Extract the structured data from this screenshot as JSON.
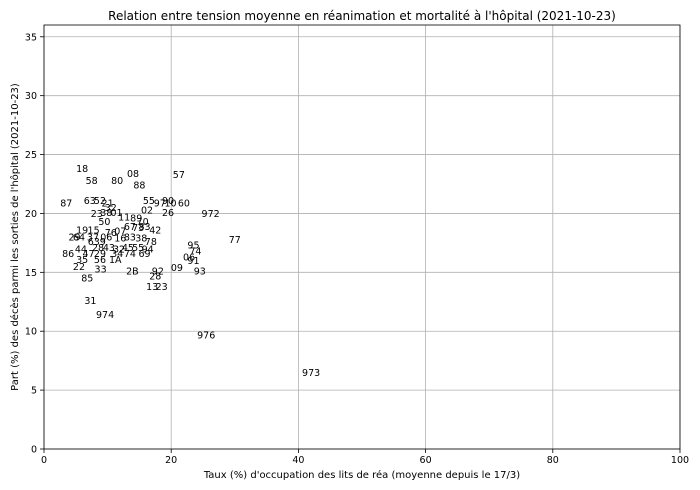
{
  "chart_data": {
    "type": "scatter",
    "title": "Relation entre tension moyenne en réanimation et mortalité à l'hôpital (2021-10-23)",
    "xlabel": "Taux (%) d'occupation des lits de réa (moyenne depuis le 17/3)",
    "ylabel": "Part (%) des décès parmi les sorties de l'hôpital (2021-10-23)",
    "xlim": [
      0,
      100
    ],
    "ylim": [
      0,
      36
    ],
    "xticks": [
      0,
      20,
      40,
      60,
      80,
      100
    ],
    "yticks": [
      0,
      5,
      10,
      15,
      20,
      25,
      30,
      35
    ],
    "grid": true,
    "marker": "text-label",
    "points": [
      {
        "label": "18",
        "x": 6.0,
        "y": 23.8
      },
      {
        "label": "58",
        "x": 7.5,
        "y": 22.8
      },
      {
        "label": "80",
        "x": 11.5,
        "y": 22.8
      },
      {
        "label": "08",
        "x": 14.0,
        "y": 23.4
      },
      {
        "label": "57",
        "x": 21.2,
        "y": 23.3
      },
      {
        "label": "88",
        "x": 15.0,
        "y": 22.4
      },
      {
        "label": "87",
        "x": 3.5,
        "y": 20.9
      },
      {
        "label": "63",
        "x": 7.2,
        "y": 21.1
      },
      {
        "label": "52",
        "x": 8.8,
        "y": 21.1
      },
      {
        "label": "21",
        "x": 10.0,
        "y": 20.9
      },
      {
        "label": "55",
        "x": 16.5,
        "y": 21.1
      },
      {
        "label": "90",
        "x": 19.5,
        "y": 21.1
      },
      {
        "label": "97",
        "x": 18.2,
        "y": 20.9
      },
      {
        "label": "10",
        "x": 19.9,
        "y": 20.9
      },
      {
        "label": "60",
        "x": 22.0,
        "y": 20.9
      },
      {
        "label": "32",
        "x": 10.5,
        "y": 20.5
      },
      {
        "label": "02",
        "x": 16.2,
        "y": 20.3
      },
      {
        "label": "26",
        "x": 19.5,
        "y": 20.1
      },
      {
        "label": "972",
        "x": 26.2,
        "y": 20.0
      },
      {
        "label": "23",
        "x": 8.3,
        "y": 20.0
      },
      {
        "label": "38",
        "x": 9.8,
        "y": 20.1
      },
      {
        "label": "01",
        "x": 11.4,
        "y": 20.1
      },
      {
        "label": "11",
        "x": 12.6,
        "y": 19.7
      },
      {
        "label": "89",
        "x": 14.5,
        "y": 19.6
      },
      {
        "label": "50",
        "x": 9.5,
        "y": 19.3
      },
      {
        "label": "70",
        "x": 15.5,
        "y": 19.3
      },
      {
        "label": "67",
        "x": 13.5,
        "y": 18.9
      },
      {
        "label": "73",
        "x": 14.8,
        "y": 18.8
      },
      {
        "label": "83",
        "x": 15.8,
        "y": 18.9
      },
      {
        "label": "42",
        "x": 17.5,
        "y": 18.6
      },
      {
        "label": "19",
        "x": 6.0,
        "y": 18.6
      },
      {
        "label": "15",
        "x": 7.8,
        "y": 18.6
      },
      {
        "label": "76",
        "x": 10.5,
        "y": 18.4
      },
      {
        "label": "07",
        "x": 12.0,
        "y": 18.5
      },
      {
        "label": "77",
        "x": 30.0,
        "y": 17.8
      },
      {
        "label": "29",
        "x": 4.8,
        "y": 18.0
      },
      {
        "label": "64",
        "x": 5.5,
        "y": 18.0
      },
      {
        "label": "37",
        "x": 7.7,
        "y": 18.0
      },
      {
        "label": "06",
        "x": 9.8,
        "y": 18.0
      },
      {
        "label": "16",
        "x": 12.0,
        "y": 17.9
      },
      {
        "label": "83",
        "x": 13.5,
        "y": 18.0
      },
      {
        "label": "38",
        "x": 15.3,
        "y": 17.9
      },
      {
        "label": "639",
        "x": 8.3,
        "y": 17.6
      },
      {
        "label": "78",
        "x": 16.8,
        "y": 17.6
      },
      {
        "label": "95",
        "x": 23.5,
        "y": 17.3
      },
      {
        "label": "44",
        "x": 5.8,
        "y": 17.0
      },
      {
        "label": "28",
        "x": 8.5,
        "y": 17.1
      },
      {
        "label": "43",
        "x": 10.2,
        "y": 17.1
      },
      {
        "label": "32",
        "x": 11.8,
        "y": 17.0
      },
      {
        "label": "45",
        "x": 13.2,
        "y": 17.1
      },
      {
        "label": "55",
        "x": 14.8,
        "y": 17.1
      },
      {
        "label": "94",
        "x": 16.3,
        "y": 17.0
      },
      {
        "label": "74",
        "x": 23.8,
        "y": 16.8
      },
      {
        "label": "86",
        "x": 3.8,
        "y": 16.6
      },
      {
        "label": "47",
        "x": 7.0,
        "y": 16.6
      },
      {
        "label": "29",
        "x": 8.8,
        "y": 16.6
      },
      {
        "label": "34",
        "x": 11.5,
        "y": 16.6
      },
      {
        "label": "74",
        "x": 13.5,
        "y": 16.6
      },
      {
        "label": "69",
        "x": 15.8,
        "y": 16.6
      },
      {
        "label": "06",
        "x": 22.8,
        "y": 16.3
      },
      {
        "label": "35",
        "x": 6.0,
        "y": 16.1
      },
      {
        "label": "56",
        "x": 8.8,
        "y": 16.1
      },
      {
        "label": "1A",
        "x": 11.2,
        "y": 16.1
      },
      {
        "label": "91",
        "x": 23.5,
        "y": 16.0
      },
      {
        "label": "22",
        "x": 5.5,
        "y": 15.5
      },
      {
        "label": "33",
        "x": 8.9,
        "y": 15.3
      },
      {
        "label": "2B",
        "x": 13.9,
        "y": 15.1
      },
      {
        "label": "92",
        "x": 17.9,
        "y": 15.1
      },
      {
        "label": "09",
        "x": 20.9,
        "y": 15.4
      },
      {
        "label": "93",
        "x": 24.5,
        "y": 15.1
      },
      {
        "label": "85",
        "x": 6.8,
        "y": 14.5
      },
      {
        "label": "28",
        "x": 17.5,
        "y": 14.7
      },
      {
        "label": "13",
        "x": 17.0,
        "y": 13.8
      },
      {
        "label": "23",
        "x": 18.5,
        "y": 13.8
      },
      {
        "label": "31",
        "x": 7.3,
        "y": 12.6
      },
      {
        "label": "974",
        "x": 9.6,
        "y": 11.4
      },
      {
        "label": "976",
        "x": 25.5,
        "y": 9.7
      },
      {
        "label": "973",
        "x": 42.0,
        "y": 6.5
      }
    ]
  }
}
